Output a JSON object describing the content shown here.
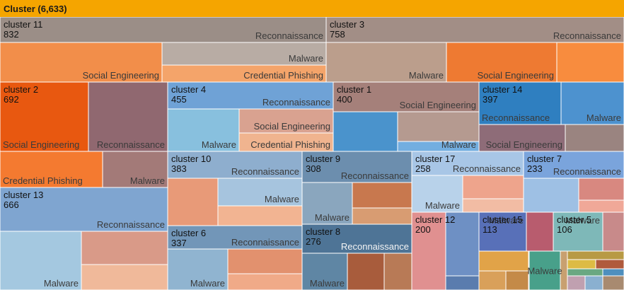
{
  "chart_data": {
    "type": "treemap",
    "root": {
      "name": "Cluster",
      "count": "6,633",
      "color": "#f5a500"
    },
    "clusters": [
      {
        "name": "cluster 11",
        "count": "832",
        "color": "#9b8e87",
        "children": [
          {
            "label": "Reconnaissance",
            "color": "#9b8e87"
          },
          {
            "label": "Social Engineering",
            "color": "#f28e4a"
          },
          {
            "label": "Malware",
            "color": "#b8aca4"
          },
          {
            "label": "Credential Phishing",
            "color": "#f4a46a"
          }
        ]
      },
      {
        "name": "cluster 3",
        "count": "758",
        "color": "#a28e86",
        "children": [
          {
            "label": "Reconnaissance",
            "color": "#a28e86"
          },
          {
            "label": "Malware",
            "color": "#bb9e8c"
          },
          {
            "label": "Social Engineering",
            "color": "#ee7a32"
          },
          {
            "label": "",
            "color": "#f88c3e"
          }
        ]
      },
      {
        "name": "cluster 2",
        "count": "692",
        "color": "#e85810",
        "children": [
          {
            "label": "Social Engineering",
            "color": "#e85810"
          },
          {
            "label": "Reconnaissance",
            "color": "#906870"
          },
          {
            "label": "Credential Phishing",
            "color": "#f47a30"
          },
          {
            "label": "Malware",
            "color": "#a37a78"
          }
        ]
      },
      {
        "name": "cluster 13",
        "count": "666",
        "color": "#7fa5d0",
        "children": [
          {
            "label": "Reconnaissance",
            "color": "#7fa5d0"
          },
          {
            "label": "Malware",
            "color": "#a4c8e0"
          },
          {
            "label": "",
            "color": "#d99a88"
          },
          {
            "label": "",
            "color": "#f0b99a"
          }
        ]
      },
      {
        "name": "cluster 4",
        "count": "455",
        "color": "#6fa2d6",
        "children": [
          {
            "label": "Reconnaissance",
            "color": "#6fa2d6"
          },
          {
            "label": "Malware",
            "color": "#88c0de"
          },
          {
            "label": "Social Engineering",
            "color": "#d9a290"
          },
          {
            "label": "Credential Phishing",
            "color": "#f0b48f"
          }
        ]
      },
      {
        "name": "cluster 1",
        "count": "400",
        "color": "#a5807a",
        "children": [
          {
            "label": "Social Engineering",
            "color": "#a5807a"
          },
          {
            "label": "",
            "color": "#4a93cc"
          },
          {
            "label": "",
            "color": "#b59a90"
          },
          {
            "label": "Malware",
            "color": "#73aee0"
          }
        ]
      },
      {
        "name": "cluster 14",
        "count": "397",
        "color": "#2f7fc0",
        "children": [
          {
            "label": "Reconnaissance",
            "color": "#2f7fc0"
          },
          {
            "label": "Malware",
            "color": "#4d92cf"
          },
          {
            "label": "Social Engineering",
            "color": "#8e6c78"
          },
          {
            "label": "",
            "color": "#9a8480"
          }
        ]
      },
      {
        "name": "cluster 10",
        "count": "383",
        "color": "#8eaece",
        "children": [
          {
            "label": "Reconnaissance",
            "color": "#8eaece"
          },
          {
            "label": "",
            "color": "#e89a78"
          },
          {
            "label": "Malware",
            "color": "#a6c4de"
          },
          {
            "label": "",
            "color": "#f2b492"
          }
        ]
      },
      {
        "name": "cluster 9",
        "count": "308",
        "color": "#6c8eae",
        "children": [
          {
            "label": "Reconnaissance",
            "color": "#6c8eae"
          },
          {
            "label": "Malware",
            "color": "#8aa6be"
          },
          {
            "label": "",
            "color": "#c8784e"
          },
          {
            "label": "",
            "color": "#d89c72"
          }
        ]
      },
      {
        "name": "cluster 6",
        "count": "337",
        "color": "#7296b8",
        "children": [
          {
            "label": "Reconnaissance",
            "color": "#7296b8"
          },
          {
            "label": "Malware",
            "color": "#90b4d0"
          },
          {
            "label": "",
            "color": "#e2916e"
          },
          {
            "label": "",
            "color": "#f0aa88"
          }
        ]
      },
      {
        "name": "cluster 8",
        "count": "276",
        "color": "#4e7496",
        "children": [
          {
            "label": "Reconnaissance",
            "color": "#4e7496"
          },
          {
            "label": "Malware",
            "color": "#5f86a4"
          },
          {
            "label": "",
            "color": "#a85c3c"
          },
          {
            "label": "",
            "color": "#b87a56"
          }
        ]
      },
      {
        "name": "cluster 17",
        "count": "258",
        "color": "#a8c6e6",
        "children": [
          {
            "label": "Reconnaissance",
            "color": "#a8c6e6"
          },
          {
            "label": "Malware",
            "color": "#b8d2ea"
          },
          {
            "label": "",
            "color": "#eea48c"
          },
          {
            "label": "",
            "color": "#f2bca4"
          }
        ]
      },
      {
        "name": "cluster 7",
        "count": "233",
        "color": "#7aa4dc",
        "children": [
          {
            "label": "Reconnaissance",
            "color": "#7aa4dc"
          },
          {
            "label": "",
            "color": "#9ec0e4"
          },
          {
            "label": "",
            "color": "#d88880"
          },
          {
            "label": "",
            "color": "#f0a898"
          }
        ]
      },
      {
        "name": "cluster 12",
        "count": "200",
        "color": "#c8706e",
        "children": [
          {
            "label": "",
            "color": "#e09090"
          },
          {
            "label": "",
            "color": "#6e90c4"
          },
          {
            "label": "",
            "color": "#5a7cae"
          }
        ]
      },
      {
        "name": "cluster 15",
        "count": "113",
        "color": "#5870b8",
        "children": [
          {
            "label": "Malware",
            "color": "#5870b8"
          },
          {
            "label": "",
            "color": "#b85c6e"
          }
        ]
      },
      {
        "name": "cluster 5",
        "count": "106",
        "color": "#7eb8b8",
        "children": [
          {
            "label": "Malware",
            "color": "#7eb8b8"
          },
          {
            "label": "",
            "color": "#c88a8a"
          }
        ]
      },
      {
        "name": "",
        "count": "",
        "color": "#d4a040",
        "children": [
          {
            "label": "Malware",
            "color": "#48a08a"
          }
        ]
      }
    ]
  }
}
